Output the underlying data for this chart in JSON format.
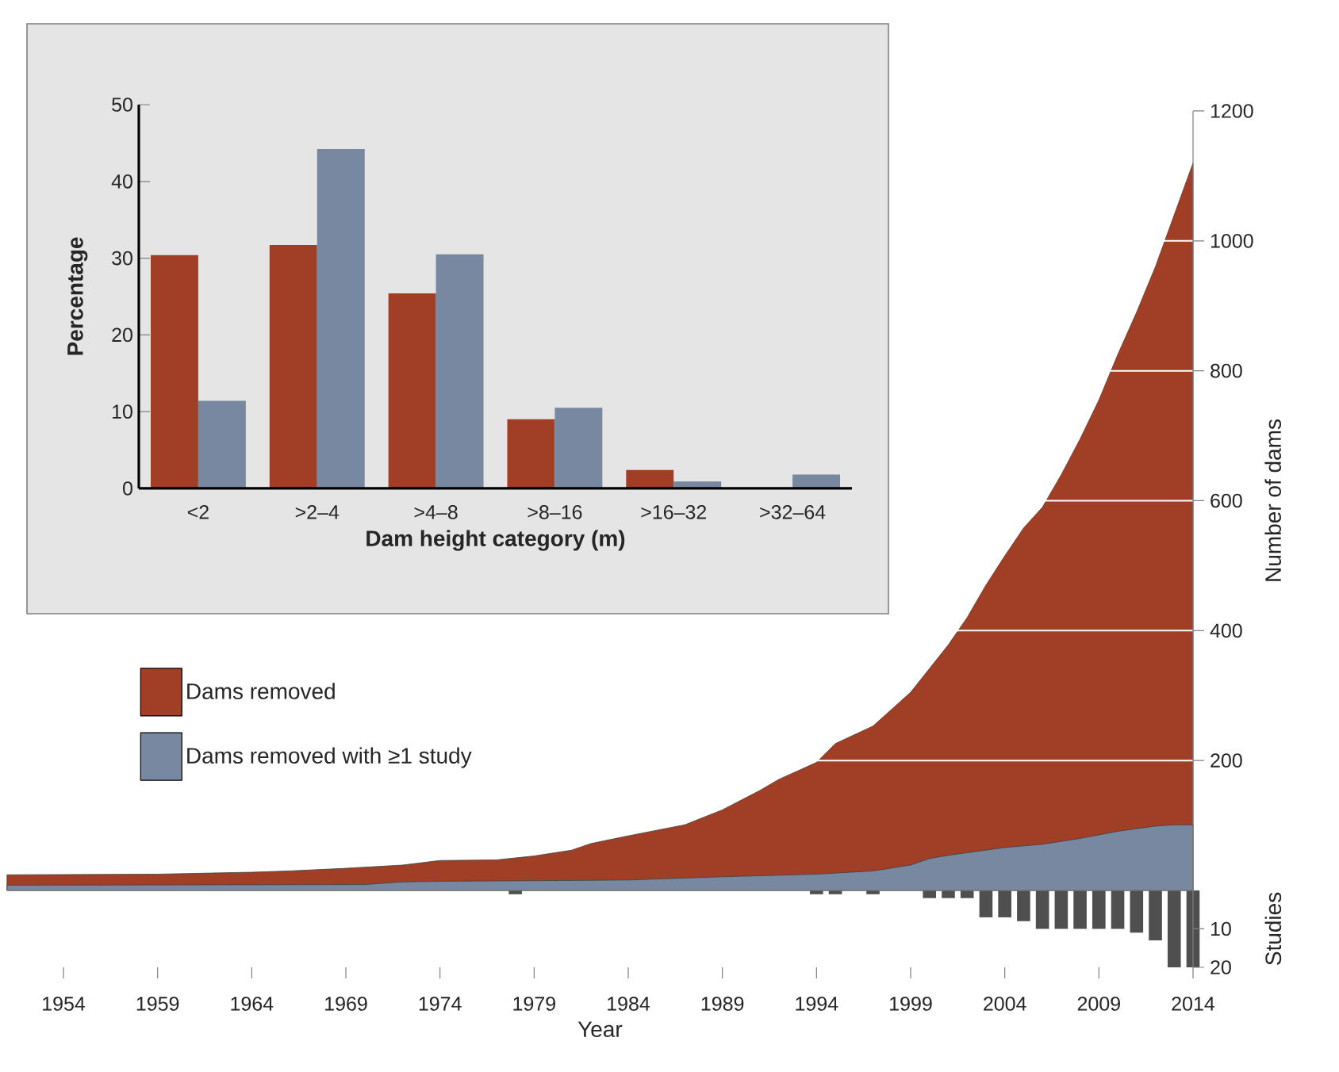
{
  "chart_data": [
    {
      "type": "bar",
      "xlabel": "Dam height category (m)",
      "ylabel": "Percentage",
      "categories": [
        "<2",
        ">2–4",
        ">4–8",
        ">8–16",
        ">16–32",
        ">32–64"
      ],
      "ylim": [
        0,
        50
      ],
      "yticks": [
        0,
        10,
        20,
        30,
        40,
        50
      ],
      "series": [
        {
          "color": "#a13f26",
          "values": [
            30.4,
            31.7,
            25.4,
            9.0,
            2.4,
            0
          ]
        },
        {
          "color": "#7788a0",
          "values": [
            11.4,
            44.2,
            30.5,
            10.5,
            0.9,
            1.8
          ]
        }
      ]
    },
    {
      "type": "area",
      "ylabel": "Number of dams",
      "xlim": [
        1951,
        2014
      ],
      "ylim": [
        0,
        1200
      ],
      "yticks": [
        200,
        400,
        600,
        800,
        1000,
        1200
      ],
      "grid": "y",
      "legend": "left",
      "tick_labels": "y",
      "series": [
        {
          "name": "Dams removed",
          "color": "#a13f26",
          "x": [
            1951,
            1959,
            1964,
            1966,
            1969,
            1972,
            1974,
            1977,
            1979,
            1981,
            1982,
            1984,
            1987,
            1989,
            1991,
            1992,
            1994,
            1995,
            1997,
            1999,
            2001,
            2002,
            2003,
            2004,
            2005,
            2006,
            2007,
            2008,
            2009,
            2010,
            2011,
            2012,
            2013,
            2014
          ],
          "values": [
            24,
            25,
            28,
            30,
            34,
            39,
            46,
            47,
            53,
            62,
            72,
            84,
            101,
            124,
            154,
            171,
            197,
            226,
            253,
            305,
            378,
            420,
            470,
            515,
            558,
            590,
            640,
            695,
            755,
            825,
            890,
            960,
            1040,
            1120
          ]
        },
        {
          "name": "Dams removed with ≥1 study",
          "color": "#7788a0",
          "x": [
            1951,
            1970,
            1972,
            1974,
            1984,
            1989,
            1994,
            1997,
            1999,
            2000,
            2001,
            2002,
            2004,
            2006,
            2008,
            2010,
            2012,
            2013,
            2014
          ],
          "values": [
            8,
            9,
            13,
            14,
            16,
            21,
            25,
            30,
            39,
            49,
            54,
            58,
            66,
            71,
            80,
            91,
            99,
            101,
            101
          ]
        }
      ]
    },
    {
      "type": "bar",
      "xlabel": "Year",
      "ylabel": "Studies",
      "xlim": [
        1951,
        2014
      ],
      "xticks": [
        1954,
        1959,
        1964,
        1969,
        1974,
        1979,
        1984,
        1989,
        1994,
        1999,
        2004,
        2009,
        2014
      ],
      "ylim": [
        20,
        0
      ],
      "yticks": [
        10,
        20
      ],
      "color": "#4f4f4f",
      "x": [
        1978,
        1994,
        1995,
        1997,
        2000,
        2001,
        2002,
        2003,
        2004,
        2005,
        2006,
        2007,
        2008,
        2009,
        2010,
        2011,
        2012,
        2013,
        2014
      ],
      "values": [
        1,
        1,
        1,
        1,
        2,
        2,
        2,
        7,
        7,
        8,
        10,
        10,
        10,
        10,
        10,
        11,
        13,
        20,
        20
      ]
    }
  ]
}
